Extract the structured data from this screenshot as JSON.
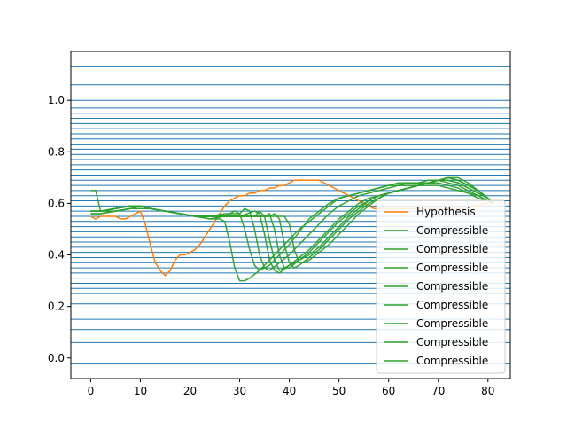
{
  "chart_data": {
    "type": "line",
    "xlim": [
      -4.0,
      84.5
    ],
    "ylim": [
      -0.08,
      1.19
    ],
    "x_ticks": [
      0,
      10,
      20,
      30,
      40,
      50,
      60,
      70,
      80
    ],
    "y_ticks": [
      0.0,
      0.2,
      0.4,
      0.6,
      0.8,
      1.0
    ],
    "x_tick_labels": [
      "0",
      "10",
      "20",
      "30",
      "40",
      "50",
      "60",
      "70",
      "80"
    ],
    "y_tick_labels": [
      "0.0",
      "0.2",
      "0.4",
      "0.6",
      "0.8",
      "1.0"
    ],
    "grid": false,
    "legend_position": "lower right",
    "reference_line_color": "#1f77b4",
    "reference_lines_y": [
      -0.02,
      0.06,
      0.11,
      0.15,
      0.19,
      0.21,
      0.25,
      0.27,
      0.29,
      0.31,
      0.33,
      0.35,
      0.37,
      0.39,
      0.41,
      0.43,
      0.45,
      0.47,
      0.49,
      0.51,
      0.53,
      0.55,
      0.57,
      0.59,
      0.61,
      0.63,
      0.65,
      0.67,
      0.69,
      0.71,
      0.73,
      0.75,
      0.77,
      0.79,
      0.81,
      0.83,
      0.85,
      0.87,
      0.89,
      0.91,
      0.93,
      0.95,
      0.97,
      1.0,
      1.06,
      1.13
    ],
    "series": [
      {
        "name": "Hypothesis",
        "color": "#ff7f0e",
        "x": [
          0,
          1,
          2,
          3,
          4,
          5,
          6,
          7,
          8,
          9,
          10,
          11,
          12,
          13,
          14,
          15,
          16,
          17,
          18,
          19,
          20,
          21,
          22,
          23,
          24,
          25,
          26,
          27,
          28,
          29,
          30,
          31,
          32,
          33,
          34,
          35,
          36,
          37,
          38,
          39,
          40,
          41,
          42,
          43,
          44,
          45,
          46,
          47,
          48,
          49,
          50,
          51,
          52,
          53,
          54,
          55,
          56,
          57,
          58,
          59,
          60,
          61,
          62,
          63,
          64,
          65,
          66,
          67,
          68,
          69,
          70,
          71,
          72,
          73,
          74,
          75,
          76,
          77,
          78,
          79,
          80
        ],
        "y": [
          0.55,
          0.54,
          0.55,
          0.55,
          0.55,
          0.55,
          0.54,
          0.54,
          0.55,
          0.56,
          0.57,
          0.52,
          0.44,
          0.37,
          0.34,
          0.32,
          0.34,
          0.38,
          0.4,
          0.4,
          0.41,
          0.42,
          0.44,
          0.47,
          0.5,
          0.53,
          0.56,
          0.59,
          0.61,
          0.62,
          0.63,
          0.63,
          0.64,
          0.64,
          0.65,
          0.65,
          0.66,
          0.66,
          0.67,
          0.67,
          0.68,
          0.69,
          0.69,
          0.69,
          0.69,
          0.69,
          0.69,
          0.68,
          0.67,
          0.66,
          0.65,
          0.64,
          0.63,
          0.62,
          0.61,
          0.6,
          0.59,
          0.58,
          0.58,
          0.58,
          0.58,
          0.58,
          0.58,
          0.58,
          0.58,
          0.58,
          0.58,
          0.58,
          0.58,
          0.58,
          0.58,
          0.58,
          0.58,
          0.58,
          0.58,
          0.58,
          0.58,
          0.59,
          0.59,
          0.6,
          0.6
        ]
      },
      {
        "name": "Compressible",
        "color": "#2ca02c",
        "x": [
          0,
          1,
          2,
          5,
          8,
          10,
          12,
          15,
          18,
          21,
          24,
          26,
          27,
          28,
          29,
          30,
          31,
          32,
          34,
          36,
          38,
          40,
          42,
          44,
          46,
          48,
          50,
          52,
          54,
          56,
          58,
          60,
          62,
          64,
          66,
          68,
          70,
          72,
          74,
          76,
          78,
          80,
          81
        ],
        "y": [
          0.65,
          0.65,
          0.57,
          0.57,
          0.58,
          0.58,
          0.58,
          0.57,
          0.56,
          0.55,
          0.54,
          0.54,
          0.53,
          0.45,
          0.35,
          0.3,
          0.3,
          0.31,
          0.34,
          0.38,
          0.42,
          0.46,
          0.5,
          0.53,
          0.56,
          0.59,
          0.62,
          0.63,
          0.64,
          0.65,
          0.66,
          0.67,
          0.67,
          0.67,
          0.67,
          0.67,
          0.67,
          0.66,
          0.65,
          0.64,
          0.62,
          0.61,
          0.6
        ]
      },
      {
        "name": "Compressible",
        "color": "#2ca02c",
        "x": [
          0,
          2,
          5,
          8,
          10,
          12,
          15,
          18,
          21,
          24,
          27,
          28,
          29,
          30,
          31,
          32,
          33,
          34,
          36,
          38,
          40,
          42,
          44,
          46,
          48,
          50,
          52,
          54,
          56,
          58,
          60,
          62,
          64,
          66,
          68,
          70,
          72,
          74,
          76,
          78,
          80,
          81
        ],
        "y": [
          0.56,
          0.56,
          0.57,
          0.58,
          0.58,
          0.58,
          0.57,
          0.56,
          0.55,
          0.54,
          0.55,
          0.56,
          0.57,
          0.56,
          0.5,
          0.42,
          0.36,
          0.34,
          0.36,
          0.4,
          0.44,
          0.49,
          0.54,
          0.57,
          0.6,
          0.62,
          0.63,
          0.64,
          0.65,
          0.66,
          0.67,
          0.68,
          0.68,
          0.68,
          0.68,
          0.68,
          0.67,
          0.66,
          0.64,
          0.63,
          0.61,
          0.6
        ]
      },
      {
        "name": "Compressible",
        "color": "#2ca02c",
        "x": [
          0,
          2,
          5,
          8,
          10,
          12,
          15,
          18,
          21,
          24,
          27,
          30,
          31,
          32,
          33,
          34,
          35,
          36,
          38,
          40,
          42,
          44,
          46,
          48,
          50,
          52,
          54,
          56,
          58,
          60,
          62,
          64,
          66,
          68,
          70,
          72,
          74,
          76,
          78,
          80,
          81
        ],
        "y": [
          0.57,
          0.57,
          0.58,
          0.59,
          0.59,
          0.58,
          0.57,
          0.56,
          0.55,
          0.55,
          0.56,
          0.56,
          0.58,
          0.57,
          0.5,
          0.4,
          0.35,
          0.34,
          0.37,
          0.4,
          0.44,
          0.48,
          0.52,
          0.56,
          0.59,
          0.61,
          0.63,
          0.64,
          0.65,
          0.66,
          0.67,
          0.68,
          0.68,
          0.69,
          0.69,
          0.68,
          0.67,
          0.65,
          0.63,
          0.61,
          0.6
        ]
      },
      {
        "name": "Compressible",
        "color": "#2ca02c",
        "x": [
          0,
          2,
          5,
          8,
          10,
          12,
          15,
          18,
          21,
          24,
          27,
          30,
          33,
          34,
          35,
          36,
          37,
          38,
          40,
          42,
          44,
          46,
          48,
          50,
          52,
          54,
          56,
          58,
          60,
          62,
          64,
          66,
          68,
          70,
          72,
          74,
          76,
          78,
          80,
          81
        ],
        "y": [
          0.56,
          0.56,
          0.57,
          0.58,
          0.59,
          0.58,
          0.57,
          0.56,
          0.55,
          0.55,
          0.55,
          0.55,
          0.57,
          0.56,
          0.48,
          0.38,
          0.34,
          0.33,
          0.36,
          0.39,
          0.42,
          0.46,
          0.5,
          0.54,
          0.57,
          0.6,
          0.62,
          0.63,
          0.64,
          0.65,
          0.66,
          0.67,
          0.68,
          0.69,
          0.69,
          0.68,
          0.66,
          0.64,
          0.62,
          0.6
        ]
      },
      {
        "name": "Compressible",
        "color": "#2ca02c",
        "x": [
          0,
          2,
          5,
          8,
          10,
          12,
          15,
          18,
          21,
          24,
          27,
          30,
          33,
          34,
          35,
          36,
          37,
          38,
          40,
          42,
          44,
          46,
          48,
          50,
          52,
          54,
          56,
          58,
          60,
          62,
          64,
          66,
          68,
          70,
          72,
          74,
          76,
          78,
          80,
          81
        ],
        "y": [
          0.57,
          0.57,
          0.58,
          0.59,
          0.59,
          0.58,
          0.57,
          0.56,
          0.55,
          0.55,
          0.55,
          0.55,
          0.55,
          0.57,
          0.55,
          0.46,
          0.38,
          0.34,
          0.36,
          0.38,
          0.41,
          0.45,
          0.49,
          0.53,
          0.56,
          0.59,
          0.61,
          0.63,
          0.64,
          0.65,
          0.66,
          0.67,
          0.68,
          0.69,
          0.69,
          0.68,
          0.66,
          0.64,
          0.62,
          0.6
        ]
      },
      {
        "name": "Compressible",
        "color": "#2ca02c",
        "x": [
          0,
          2,
          5,
          8,
          10,
          12,
          15,
          18,
          21,
          24,
          27,
          30,
          33,
          35,
          36,
          37,
          38,
          39,
          40,
          42,
          44,
          46,
          48,
          50,
          52,
          54,
          56,
          58,
          60,
          62,
          64,
          66,
          68,
          70,
          72,
          74,
          76,
          78,
          80,
          81
        ],
        "y": [
          0.57,
          0.57,
          0.58,
          0.59,
          0.59,
          0.58,
          0.57,
          0.56,
          0.55,
          0.55,
          0.55,
          0.55,
          0.55,
          0.55,
          0.56,
          0.5,
          0.4,
          0.35,
          0.35,
          0.38,
          0.4,
          0.43,
          0.47,
          0.51,
          0.55,
          0.58,
          0.61,
          0.63,
          0.64,
          0.65,
          0.66,
          0.67,
          0.68,
          0.69,
          0.7,
          0.69,
          0.67,
          0.65,
          0.62,
          0.6
        ]
      },
      {
        "name": "Compressible",
        "color": "#2ca02c",
        "x": [
          0,
          2,
          5,
          8,
          10,
          12,
          15,
          18,
          21,
          24,
          27,
          30,
          33,
          36,
          37,
          38,
          39,
          40,
          41,
          42,
          44,
          46,
          48,
          50,
          52,
          54,
          56,
          58,
          60,
          62,
          64,
          66,
          68,
          70,
          72,
          74,
          76,
          78,
          80,
          81
        ],
        "y": [
          0.57,
          0.57,
          0.58,
          0.59,
          0.59,
          0.58,
          0.57,
          0.56,
          0.55,
          0.55,
          0.55,
          0.55,
          0.55,
          0.55,
          0.56,
          0.54,
          0.44,
          0.37,
          0.35,
          0.36,
          0.39,
          0.42,
          0.46,
          0.5,
          0.54,
          0.57,
          0.6,
          0.62,
          0.64,
          0.65,
          0.66,
          0.67,
          0.68,
          0.69,
          0.7,
          0.69,
          0.67,
          0.65,
          0.62,
          0.6
        ]
      },
      {
        "name": "Compressible",
        "color": "#2ca02c",
        "x": [
          0,
          2,
          5,
          8,
          10,
          12,
          15,
          18,
          21,
          24,
          27,
          30,
          33,
          36,
          38,
          39,
          40,
          41,
          42,
          43,
          44,
          46,
          48,
          50,
          52,
          54,
          56,
          58,
          60,
          62,
          64,
          66,
          68,
          70,
          72,
          74,
          76,
          78,
          80,
          81
        ],
        "y": [
          0.57,
          0.57,
          0.58,
          0.59,
          0.59,
          0.58,
          0.57,
          0.56,
          0.55,
          0.55,
          0.55,
          0.55,
          0.55,
          0.55,
          0.55,
          0.55,
          0.52,
          0.42,
          0.37,
          0.37,
          0.38,
          0.41,
          0.44,
          0.48,
          0.52,
          0.56,
          0.59,
          0.62,
          0.64,
          0.65,
          0.66,
          0.67,
          0.68,
          0.69,
          0.7,
          0.7,
          0.68,
          0.65,
          0.62,
          0.6
        ]
      }
    ]
  }
}
